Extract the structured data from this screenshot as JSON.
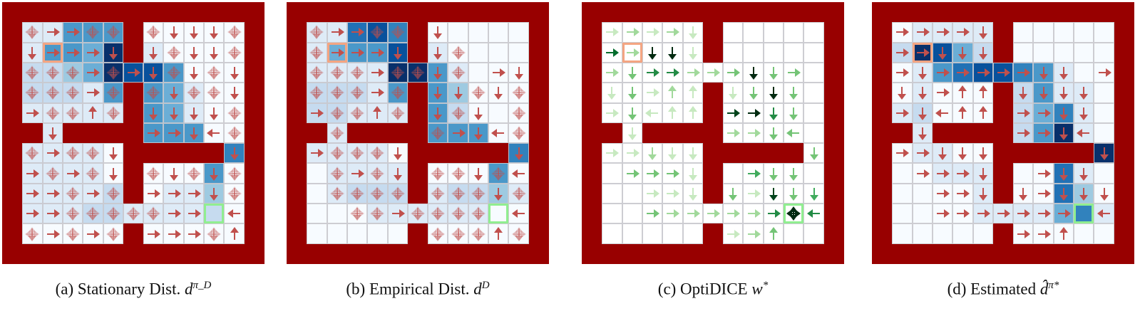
{
  "figure": {
    "colors": {
      "wall": "#980000",
      "start_marker": "#f4a582",
      "goal_marker": "#90ee90",
      "arrow_red": "#c0504d",
      "blues": [
        "#f7fbff",
        "#deebf7",
        "#c6dbef",
        "#9ecae1",
        "#6baed6",
        "#4a98c9",
        "#3182bd",
        "#2171b5",
        "#08519c",
        "#08306b"
      ],
      "greens": [
        "#ffffff",
        "#e5f5e0",
        "#c7e9c0",
        "#a1d99b",
        "#74c476",
        "#41ab5d",
        "#238b45",
        "#006d2c",
        "#00441b",
        "#002a10"
      ]
    },
    "grid_size": 13,
    "start_cell": [
      2,
      2
    ],
    "goal_cell": [
      10,
      10
    ],
    "panels": [
      {
        "id": "a",
        "caption_prefix": "(a) Stationary Dist.",
        "caption_math": "d",
        "caption_sup": "π_D",
        "palette": "blues",
        "arrow_color": "red",
        "heat": [
          "#############",
          "#11555#00000#",
          "#15549#10000#",
          "#22349885000#",
          "#22215#54100#",
          "#11111#54100#",
          "##1####55500#",
          "#11110#####6#",
          "#11110#00050#",
          "#11112#01130#",
          "#11122111120#",
          "#00000#00000#",
          "#############"
        ],
        "arrows": [
          "#############",
          "#BRRBB#BDDDB#",
          "#DRRRD#DBDDB#",
          "#BBBRBRDBDBD#",
          "#BBBRB#BDBBD#",
          "#RBBUB#DDDDB#",
          "##D####RRDLB#",
          "#BRBBD#####D#",
          "#RBRBD#BDBDB#",
          "#RRBRB#RRRDB#",
          "#RRBBBBBRR.L#",
          "#BRBRB#RRRBU#",
          "#############"
        ]
      },
      {
        "id": "b",
        "caption_prefix": "(b) Empirical Dist.",
        "caption_math": "d",
        "caption_sup": "D",
        "palette": "blues",
        "arrow_color": "red",
        "heat": [
          "#############",
          "#11786#00000#",
          "#14558#10000#",
          "#11119951000#",
          "#22215#53000#",
          "#22111#52000#",
          "##1####55500#",
          "#11110#####6#",
          "#01111#00050#",
          "#01222#12231#",
          "#00011111100#",
          "#00000#00000#",
          "#############"
        ],
        "arrows": [
          "#############",
          "#BRRBB#D....#",
          "#BRRRD#DB...#",
          "#BBBRBBDB.RD#",
          "#BBBRB#DDBDB#",
          "#RBBUB#DBD.B#",
          "##B####BRDLB#",
          "#RBBBD#####D#",
          "#.BRBD#BBDBL#",
          "#.BBBB#BBBDB#",
          "#..BBRBBBB.L#",
          "#......BBBUB#",
          "#############"
        ]
      },
      {
        "id": "c",
        "caption_prefix": "(c) OptiDICE",
        "caption_math": "w",
        "caption_sup": "*",
        "palette": "greens",
        "arrow_color": "green",
        "heat": [
          "#############",
          "#00000#00000#",
          "#00000#00000#",
          "#00000000000#",
          "#00000#00000#",
          "#00000#00000#",
          "##0####00000#",
          "#00000#####0#",
          "#00000#00000#",
          "#00000#00000#",
          "#00000000000#",
          "#00000#00000#",
          "#############"
        ],
        "arrow_strength": [
          "#############",
          "#12121#00000#",
          "#62881#00000#",
          "#23552238334#",
          "#13121#1383.#",
          "#1311.#7853.#",
          "##1####2233.#",
          "#11211#####3#",
          "#03331#04330#",
          "#00111#30734#",
          "#00322222585#",
          "#00000#02300#",
          "#############"
        ],
        "arrows": [
          "#############",
          "#RRRRD#.....#",
          "#RRDDD#.....#",
          "#RDRRRRRDDR.#",
          "#DDRUU#DDDD.#",
          "#RDLUU#RRDD.#",
          "##D####RRDL.#",
          "#RRDDD#####D#",
          "#.RRRD#.RDD.#",
          "#..RRD#DRDDD#",
          "#..RRRRRRRAL#",
          "#......RRU..#",
          "#############"
        ]
      },
      {
        "id": "d",
        "caption_prefix": "(d) Estimated",
        "caption_math": "d̂",
        "caption_sup": "π*",
        "palette": "blues",
        "arrow_color": "red",
        "heat": [
          "#############",
          "#01111#00000#",
          "#29842#00000#",
          "#01578865100#",
          "#01000#25110#",
          "#12000#24610#",
          "##1####25910#",
          "#01100#####9#",
          "#00111#00710#",
          "#00001#00730#",
          "#00001111461#",
          "#00000#00000#",
          "#############"
        ],
        "arrows": [
          "#############",
          "#RRRRD#.....#",
          "#RRDDD#.....#",
          "#RDRRRRRDD.R#",
          "#DDRUU#DDDD.#",
          "#RDLUU#RRDD.#",
          "##D####RRDL.#",
          "#RRDDD#####D#",
          "#.RRRD#.RDD.#",
          "#..RRD#DRDDD#",
          "#..RRRRRRR.L#",
          "#......RRU..#",
          "#############"
        ]
      }
    ]
  }
}
